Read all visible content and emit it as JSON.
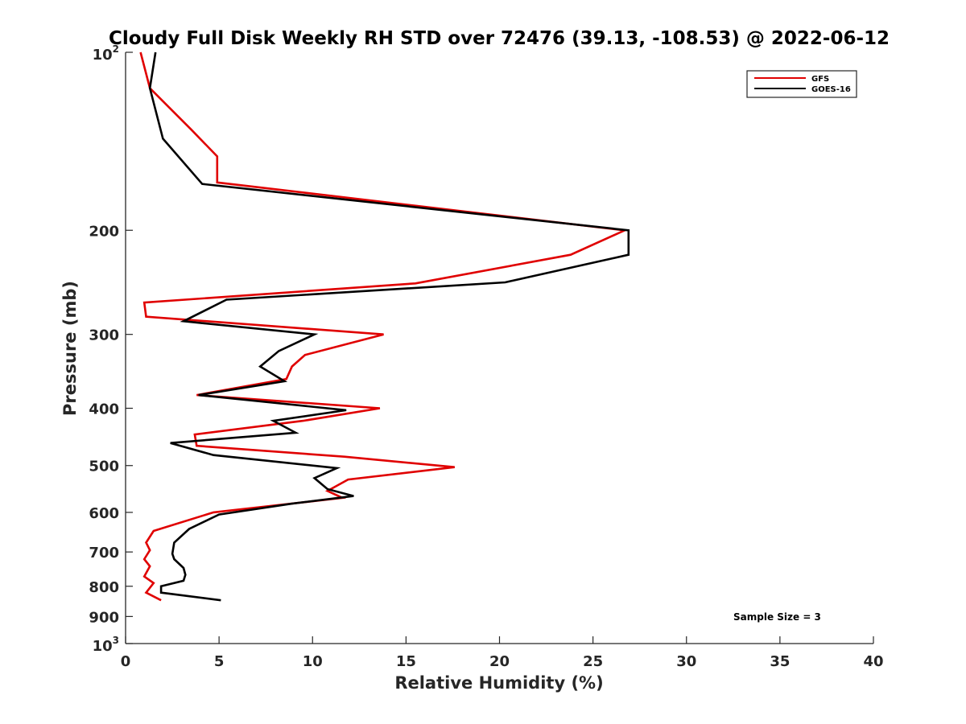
{
  "chart_data": {
    "type": "line",
    "title": "Cloudy Full Disk Weekly RH STD over 72476 (39.13, -108.53) @ 2022-06-12",
    "xlabel": "Relative Humidity (%)",
    "ylabel": "Pressure (mb)",
    "xlim": [
      0,
      40
    ],
    "ylim": [
      100,
      1000
    ],
    "y_scale": "log",
    "y_reversed": true,
    "xticks": [
      0,
      5,
      10,
      15,
      20,
      25,
      30,
      35,
      40
    ],
    "xtick_labels": [
      "0",
      "5",
      "10",
      "15",
      "20",
      "25",
      "30",
      "35",
      "40"
    ],
    "yticks": [
      200,
      300,
      400,
      500,
      600,
      700,
      800,
      900
    ],
    "ytick_labels": [
      "200",
      "300",
      "400",
      "500",
      "600",
      "700",
      "800",
      "900"
    ],
    "ytick_pow": [
      {
        "value": 100,
        "base": "10",
        "exp": "2"
      },
      {
        "value": 1000,
        "base": "10",
        "exp": "3"
      }
    ],
    "grid": false,
    "legend_position": "top-right",
    "annotation": "Sample Size = 3",
    "series": [
      {
        "name": "GFS",
        "color": "#e00000",
        "x": [
          0.8,
          1.3,
          3.5,
          4.9,
          4.9,
          26.7,
          23.8,
          15.5,
          1.0,
          1.1,
          13.8,
          9.6,
          8.9,
          8.6,
          3.8,
          13.6,
          9.5,
          3.7,
          3.8,
          11.7,
          17.6,
          11.9,
          10.8,
          11.6,
          4.7,
          1.5,
          1.1,
          1.3,
          1.0,
          1.3,
          1.0,
          1.5,
          1.1,
          1.9
        ],
        "y": [
          100,
          115,
          135,
          150,
          166,
          200,
          220,
          246,
          265,
          280,
          300,
          325,
          340,
          357,
          380,
          400,
          420,
          443,
          463,
          483,
          503,
          528,
          552,
          567,
          600,
          645,
          675,
          695,
          720,
          740,
          770,
          790,
          820,
          845
        ]
      },
      {
        "name": "GOES-16",
        "color": "#000000",
        "x": [
          1.6,
          1.3,
          2.0,
          4.1,
          26.9,
          26.9,
          20.3,
          5.4,
          3.1,
          10.1,
          8.2,
          7.2,
          8.5,
          3.9,
          11.8,
          7.9,
          9.1,
          2.4,
          4.7,
          11.3,
          10.1,
          10.8,
          12.2,
          8.9,
          5.0,
          3.4,
          2.6,
          2.5,
          2.6,
          3.1,
          3.2,
          3.1,
          1.9,
          1.9,
          5.1
        ],
        "y": [
          100,
          115,
          140,
          167,
          200,
          220,
          245,
          262,
          285,
          300,
          320,
          340,
          360,
          380,
          403,
          420,
          440,
          458,
          480,
          505,
          525,
          548,
          563,
          580,
          605,
          640,
          675,
          705,
          720,
          745,
          765,
          783,
          800,
          820,
          845
        ]
      }
    ]
  }
}
